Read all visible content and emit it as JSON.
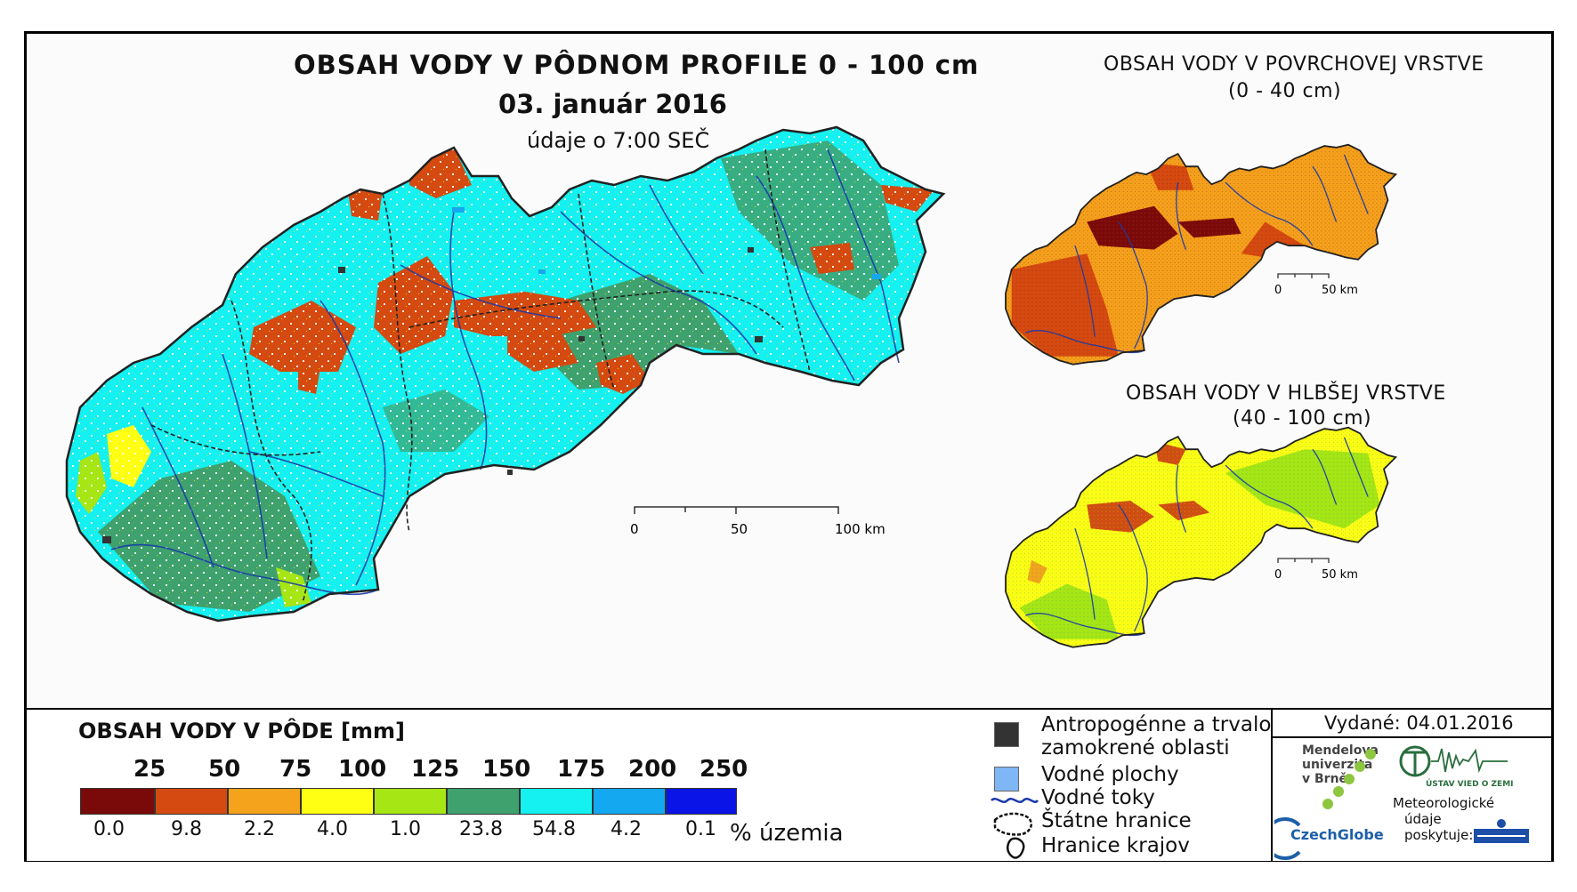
{
  "titles": {
    "main_line1": "OBSAH VODY V PÔDNOM PROFILE 0 - 100 cm",
    "main_line2": "03. január 2016",
    "main_line3": "údaje o 7:00 SEČ",
    "surface_line1": "OBSAH VODY V POVRCHOVEJ VRSTVE",
    "surface_line2": "(0 - 40 cm)",
    "deep_line1": "OBSAH VODY V HLBŠEJ VRSTVE",
    "deep_line2": "(40 - 100 cm)"
  },
  "scalebars": {
    "main": [
      "0",
      "50",
      "100 km"
    ],
    "small1": [
      "0",
      "50 km"
    ],
    "small2": [
      "0",
      "50 km"
    ]
  },
  "legend": {
    "title": "OBSAH VODY V PÔDE [mm]",
    "class_breaks": [
      "25",
      "50",
      "75",
      "100",
      "125",
      "150",
      "175",
      "200",
      "250"
    ],
    "colors": [
      "#7a0a0a",
      "#d44a10",
      "#f5a21c",
      "#ffff14",
      "#a5e614",
      "#3ea16e",
      "#15f0f0",
      "#14a8f0",
      "#0a14e6"
    ],
    "percentages": [
      "0.0",
      "9.8",
      "2.2",
      "4.0",
      "1.0",
      "23.8",
      "54.8",
      "4.2",
      "0.1"
    ],
    "percent_label": "% územia"
  },
  "symbols": {
    "anthropogenic_line1": "Antropogénne a trvalo",
    "anthropogenic_line2": "zamokrené oblasti",
    "water_areas": "Vodné plochy",
    "water_flows": "Vodné toky",
    "state_border": "Štátne hranice",
    "region_border": "Hranice krajov",
    "anthropogenic_color": "#333333",
    "water_area_color": "#7fb6f5",
    "river_color": "#1a3aa8"
  },
  "footer": {
    "issued": "Vydané: 04.01.2016",
    "mendel_line1": "Mendelova",
    "mendel_line2": "univerzita",
    "mendel_line3": "v Brně",
    "czechglobe": "CzechGlobe",
    "uvz": "ÚSTAV VIED O ZEMI",
    "meteo_line1": "Meteorologické",
    "meteo_line2": "údaje",
    "meteo_line3": "poskytuje:"
  }
}
